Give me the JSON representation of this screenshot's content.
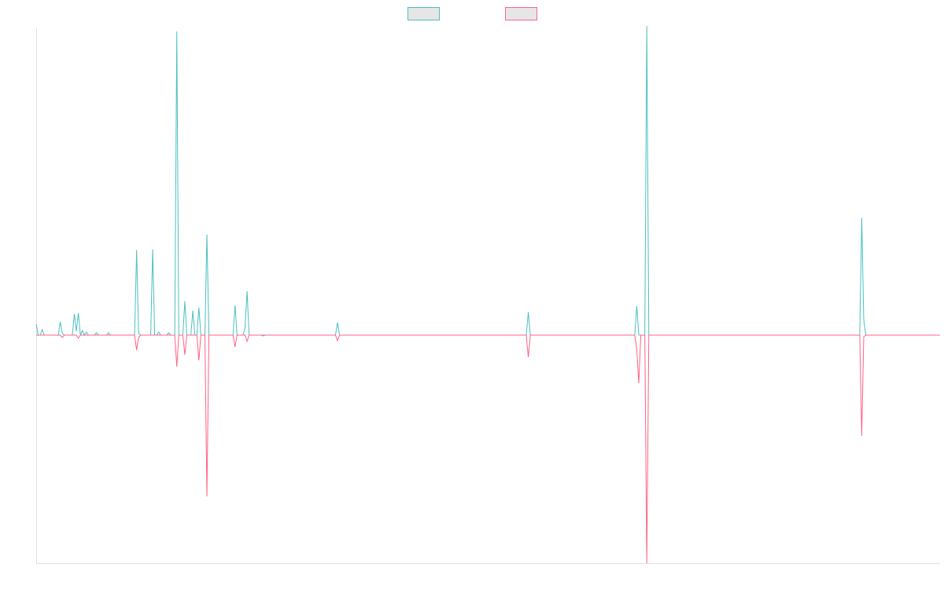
{
  "chart_data": {
    "type": "line",
    "title": "",
    "xlabel": "",
    "ylabel": "",
    "grid": false,
    "legend": {
      "placement": "top-center"
    },
    "x": [
      0,
      1,
      2,
      3,
      4,
      5,
      6,
      7,
      8,
      9,
      10,
      11,
      12,
      13,
      14,
      15,
      16,
      17,
      18,
      19,
      20,
      21,
      22,
      23,
      24,
      25,
      26,
      27,
      28,
      29,
      30,
      31,
      32,
      33,
      34,
      35,
      36,
      37,
      38,
      39,
      40,
      41,
      42,
      43,
      44,
      45,
      46,
      47,
      48,
      49,
      50,
      51,
      52,
      53,
      54,
      55,
      56,
      57,
      58,
      59,
      60,
      61,
      62,
      63,
      64,
      65,
      66,
      67,
      68,
      69,
      70,
      71,
      72,
      73,
      74,
      75,
      76,
      77,
      78,
      79,
      80,
      81,
      82,
      83,
      84,
      85,
      86,
      87,
      88,
      89,
      90,
      91,
      92,
      93,
      94,
      95,
      96,
      97,
      98,
      99,
      100,
      101,
      102,
      103,
      104,
      105,
      106,
      107,
      108,
      109,
      110,
      111,
      112,
      113,
      114,
      115,
      116,
      117,
      118,
      119,
      120,
      121,
      122,
      123,
      124,
      125,
      126,
      127,
      128,
      129,
      130,
      131,
      132,
      133,
      134,
      135,
      136,
      137,
      138,
      139,
      140,
      141,
      142,
      143,
      144,
      145,
      146,
      147,
      148,
      149,
      150,
      151,
      152,
      153,
      154,
      155,
      156,
      157,
      158,
      159,
      160,
      161,
      162,
      163,
      164,
      165,
      166,
      167,
      168,
      169,
      170,
      171,
      172,
      173,
      174,
      175,
      176,
      177,
      178,
      179,
      180,
      181,
      182,
      183,
      184,
      185,
      186,
      187,
      188,
      189,
      190,
      191,
      192,
      193,
      194,
      195,
      196,
      197,
      198,
      199,
      200,
      201,
      202,
      203,
      204,
      205,
      206,
      207,
      208,
      209,
      210,
      211,
      212,
      213,
      214,
      215,
      216,
      217,
      218,
      219,
      220,
      221,
      222,
      223,
      224,
      225,
      226,
      227,
      228,
      229,
      230,
      231,
      232,
      233,
      234,
      235,
      236,
      237,
      238,
      239,
      240,
      241,
      242,
      243,
      244,
      245,
      246,
      247,
      248,
      249,
      250,
      251,
      252,
      253,
      254,
      255,
      256,
      257,
      258,
      259,
      260,
      261,
      262,
      263,
      264,
      265,
      266,
      267,
      268,
      269,
      270,
      271,
      272,
      273,
      274,
      275,
      276,
      277,
      278,
      279,
      280,
      281,
      282,
      283,
      284,
      285,
      286,
      287,
      288,
      289,
      290,
      291,
      292,
      293,
      294,
      295,
      296,
      297,
      298,
      299,
      300,
      301,
      302,
      303,
      304,
      305,
      306,
      307,
      308,
      309,
      310,
      311,
      312,
      313,
      314,
      315,
      316,
      317,
      318,
      319,
      320,
      321,
      322,
      323,
      324,
      325,
      326,
      327,
      328,
      329,
      330,
      331,
      332,
      333,
      334,
      335,
      336,
      337,
      338,
      339,
      340,
      341,
      342,
      343,
      344,
      345,
      346,
      347,
      348,
      349,
      350,
      351,
      352,
      353,
      354,
      355,
      356,
      357,
      358,
      359,
      360,
      361,
      362,
      363,
      364,
      365,
      366,
      367,
      368,
      369,
      370,
      371,
      372,
      373,
      374,
      375,
      376,
      377,
      378,
      379,
      380,
      381,
      382,
      383,
      384,
      385,
      386,
      387,
      388,
      389,
      390,
      391,
      392,
      393,
      394,
      395,
      396,
      397,
      398,
      399,
      400,
      401,
      402,
      403,
      404,
      405,
      406,
      407,
      408,
      409,
      410,
      411,
      412,
      413,
      414,
      415,
      416,
      417,
      418,
      419,
      420,
      421,
      422,
      423,
      424,
      425,
      426,
      427,
      428,
      429,
      430,
      431,
      432,
      433,
      434,
      435,
      436,
      437,
      438,
      439,
      440,
      441,
      442,
      443,
      444,
      445,
      446,
      447,
      448,
      449,
      450
    ],
    "xlim": [
      0,
      450
    ],
    "ylim": [
      -290,
      390
    ],
    "series": [
      {
        "color": "#4bc0c0",
        "fill": "#e6e6e6",
        "points": [
          [
            0,
            14
          ],
          [
            1,
            0
          ],
          [
            2,
            0
          ],
          [
            3,
            7
          ],
          [
            4,
            0
          ],
          [
            11,
            0
          ],
          [
            12,
            17
          ],
          [
            13,
            2
          ],
          [
            14,
            0
          ],
          [
            18,
            0
          ],
          [
            19,
            27
          ],
          [
            20,
            5
          ],
          [
            21,
            28
          ],
          [
            22,
            0
          ],
          [
            23,
            6
          ],
          [
            24,
            0
          ],
          [
            25,
            4
          ],
          [
            26,
            0
          ],
          [
            29,
            0
          ],
          [
            30,
            3
          ],
          [
            31,
            0
          ],
          [
            35,
            0
          ],
          [
            36,
            3
          ],
          [
            37,
            0
          ],
          [
            49,
            0
          ],
          [
            50,
            108
          ],
          [
            51,
            2
          ],
          [
            52,
            0
          ],
          [
            57,
            0
          ],
          [
            58,
            109
          ],
          [
            59,
            0
          ],
          [
            60,
            0
          ],
          [
            61,
            4
          ],
          [
            62,
            0
          ],
          [
            65,
            0
          ],
          [
            66,
            3
          ],
          [
            67,
            0
          ],
          [
            69,
            0
          ],
          [
            70,
            386
          ],
          [
            71,
            0
          ],
          [
            73,
            0
          ],
          [
            74,
            43
          ],
          [
            75,
            0
          ],
          [
            77,
            0
          ],
          [
            78,
            31
          ],
          [
            79,
            0
          ],
          [
            80,
            0
          ],
          [
            81,
            35
          ],
          [
            82,
            0
          ],
          [
            84,
            0
          ],
          [
            85,
            128
          ],
          [
            86,
            0
          ],
          [
            98,
            0
          ],
          [
            99,
            38
          ],
          [
            100,
            0
          ],
          [
            103,
            0
          ],
          [
            104,
            10
          ],
          [
            105,
            56
          ],
          [
            106,
            0
          ],
          [
            112,
            0
          ],
          [
            113,
            0
          ],
          [
            149,
            0
          ],
          [
            150,
            16
          ],
          [
            151,
            0
          ],
          [
            244,
            0
          ],
          [
            245,
            29
          ],
          [
            246,
            0
          ],
          [
            298,
            0
          ],
          [
            299,
            37
          ],
          [
            300,
            0
          ],
          [
            303,
            0
          ],
          [
            304,
            393
          ],
          [
            305,
            0
          ],
          [
            410,
            0
          ],
          [
            411,
            149
          ],
          [
            412,
            20
          ],
          [
            413,
            0
          ],
          [
            450,
            0
          ]
        ]
      },
      {
        "color": "#ff6384",
        "fill": "#e6e6e6",
        "points": [
          [
            0,
            0
          ],
          [
            12,
            0
          ],
          [
            13,
            -3
          ],
          [
            14,
            0
          ],
          [
            20,
            0
          ],
          [
            21,
            -4
          ],
          [
            22,
            0
          ],
          [
            49,
            0
          ],
          [
            50,
            -19
          ],
          [
            51,
            -3
          ],
          [
            52,
            0
          ],
          [
            69,
            0
          ],
          [
            70,
            -40
          ],
          [
            71,
            0
          ],
          [
            73,
            0
          ],
          [
            74,
            -25
          ],
          [
            75,
            0
          ],
          [
            80,
            0
          ],
          [
            81,
            -32
          ],
          [
            82,
            0
          ],
          [
            84,
            0
          ],
          [
            85,
            -205
          ],
          [
            86,
            0
          ],
          [
            98,
            0
          ],
          [
            99,
            -15
          ],
          [
            100,
            0
          ],
          [
            104,
            0
          ],
          [
            105,
            -8
          ],
          [
            106,
            0
          ],
          [
            112,
            0
          ],
          [
            113,
            -1
          ],
          [
            114,
            0
          ],
          [
            149,
            0
          ],
          [
            150,
            -7
          ],
          [
            151,
            0
          ],
          [
            244,
            0
          ],
          [
            245,
            -28
          ],
          [
            246,
            0
          ],
          [
            298,
            0
          ],
          [
            299,
            -18
          ],
          [
            300,
            -61
          ],
          [
            301,
            0
          ],
          [
            303,
            0
          ],
          [
            304,
            -290
          ],
          [
            305,
            0
          ],
          [
            410,
            0
          ],
          [
            411,
            -128
          ],
          [
            412,
            -2
          ],
          [
            413,
            0
          ],
          [
            450,
            0
          ]
        ]
      }
    ]
  }
}
